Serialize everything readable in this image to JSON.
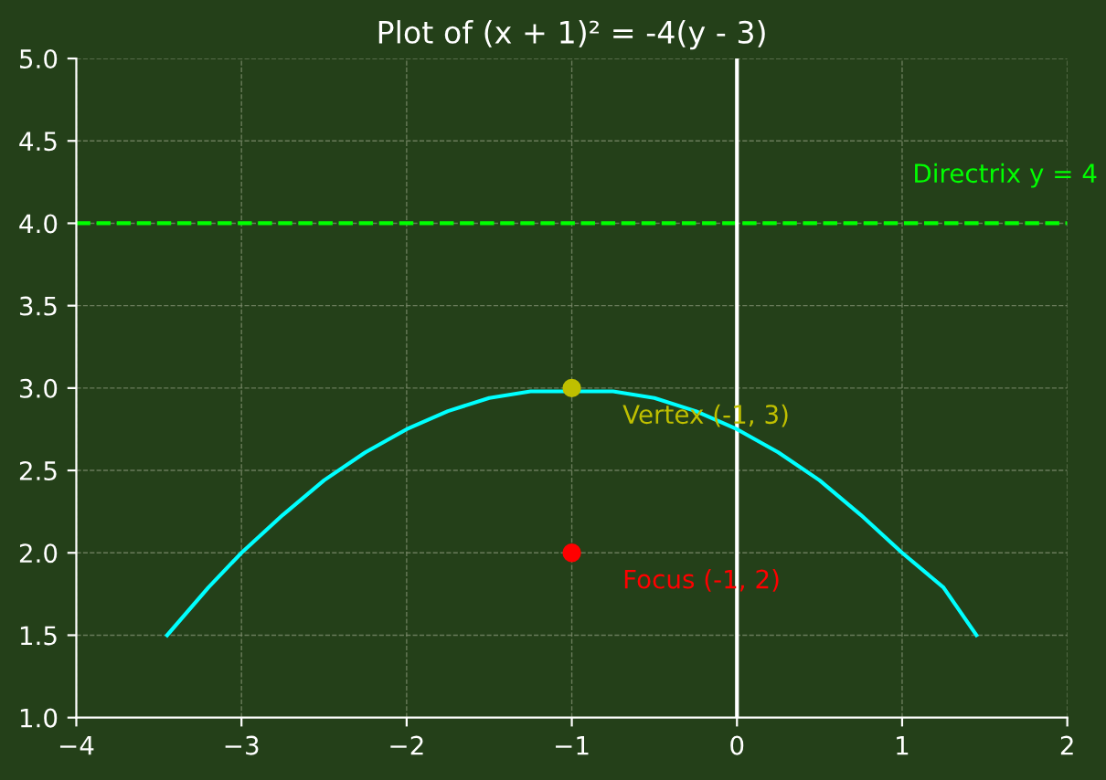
{
  "chart_data": {
    "type": "line",
    "title": "Plot of (x + 1)² = -4(y - 3)",
    "series": [
      {
        "color": "#00ffff",
        "x": [
          -3.45,
          -3.2,
          -3.0,
          -2.75,
          -2.5,
          -2.25,
          -2.0,
          -1.75,
          -1.5,
          -1.25,
          -0.75,
          -0.5,
          -0.25,
          0,
          0.25,
          0.5,
          0.75,
          1.0,
          1.25,
          1.45
        ],
        "values": [
          1.5,
          1.79,
          2.0,
          2.23,
          2.44,
          2.61,
          2.75,
          2.86,
          2.94,
          2.98,
          2.98,
          2.94,
          2.86,
          2.75,
          2.61,
          2.44,
          2.23,
          2.0,
          1.79,
          1.5
        ]
      },
      {
        "type": "scatter",
        "color": "#bfbf00",
        "marker": "circle",
        "x": [
          -1
        ],
        "values": [
          3
        ]
      },
      {
        "type": "scatter",
        "color": "#ff0000",
        "marker": "circle",
        "x": [
          -1
        ],
        "values": [
          2
        ]
      }
    ],
    "annotations": [
      {
        "text": "Vertex (-1, 3)",
        "x": -1,
        "y": 3
      },
      {
        "text": "Focus (-1, 2)",
        "x": -1,
        "y": 2
      }
    ],
    "ref_lines": [
      {
        "axis": "y",
        "value": 4,
        "label": "Directrix y = 4",
        "color": "#00ff00",
        "line_style": "dashed"
      },
      {
        "axis": "x",
        "value": 0,
        "color": "#ffffff",
        "line_style": "solid"
      }
    ],
    "xlim": [
      -4,
      2
    ],
    "xticks": [
      {
        "value": -4,
        "label": "−4"
      },
      {
        "value": -3,
        "label": "−3"
      },
      {
        "value": -2,
        "label": "−2"
      },
      {
        "value": -1,
        "label": "−1"
      },
      0,
      1,
      2
    ],
    "ylim": [
      1.0,
      5.0
    ],
    "yticks": [
      {
        "value": 1.0,
        "label": "1.0"
      },
      1.5,
      {
        "value": 2.0,
        "label": "2.0"
      },
      2.5,
      {
        "value": 3.0,
        "label": "3.0"
      },
      3.5,
      {
        "value": 4.0,
        "label": "4.0"
      },
      4.5,
      {
        "value": 5.0,
        "label": "5.0"
      }
    ],
    "grid": true
  }
}
